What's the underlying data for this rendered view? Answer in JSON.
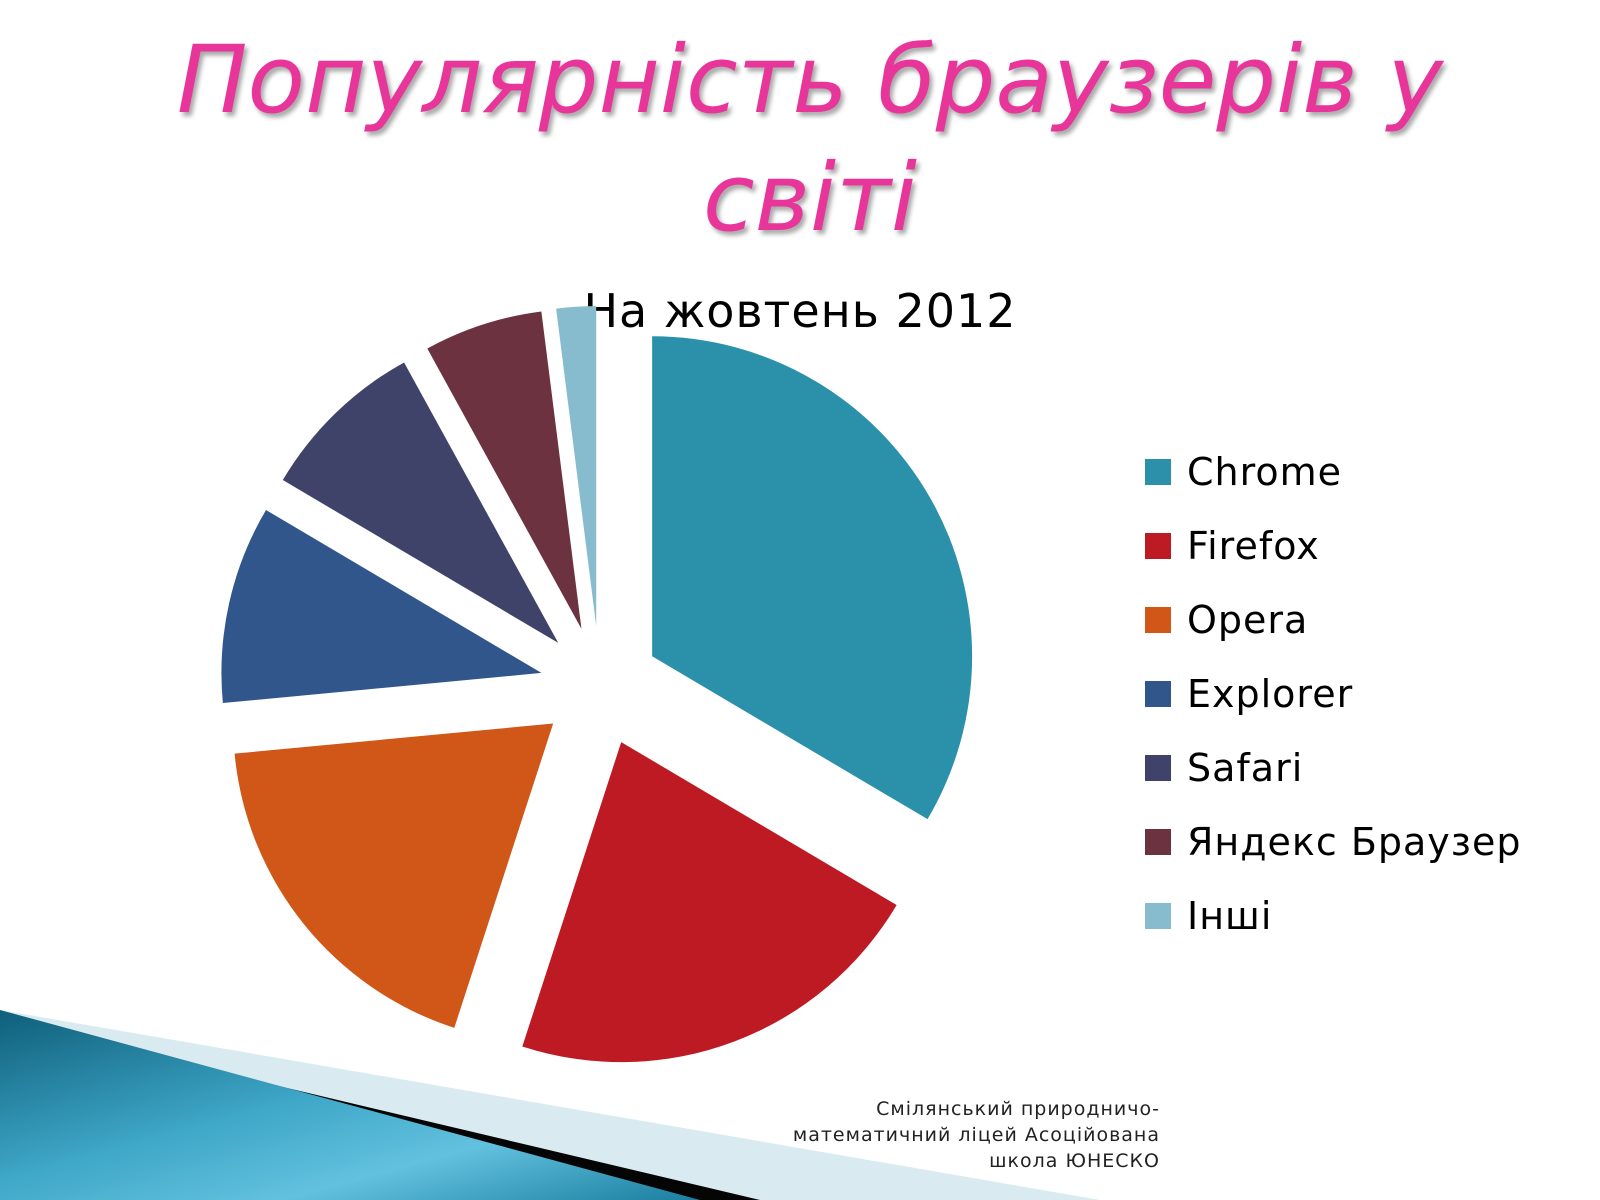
{
  "slide": {
    "title": "Популярність браузерів у світі",
    "footer": "Смілянський природничо-математичний ліцей Асоційована школа ЮНЕСКО"
  },
  "colors": {
    "title": "#e8359a",
    "chrome": "#2b91ab",
    "firefox": "#be1a24",
    "opera": "#d05718",
    "explorer": "#31568c",
    "safari": "#3f4369",
    "yandex": "#6d3240",
    "other": "#86bccd"
  },
  "chart_data": {
    "type": "pie",
    "title": "На жовтень 2012",
    "legend_position": "right",
    "exploded": true,
    "series": [
      {
        "name": "Chrome",
        "value": 33.5,
        "color": "#2b91ab"
      },
      {
        "name": "Firefox",
        "value": 21.5,
        "color": "#be1a24"
      },
      {
        "name": "Opera",
        "value": 18.5,
        "color": "#d05718"
      },
      {
        "name": "Explorer",
        "value": 10.0,
        "color": "#31568c"
      },
      {
        "name": "Safari",
        "value": 8.5,
        "color": "#3f4369"
      },
      {
        "name": "Яндекс Браузер",
        "value": 6.0,
        "color": "#6d3240"
      },
      {
        "name": "Інші",
        "value": 2.0,
        "color": "#86bccd"
      }
    ]
  }
}
